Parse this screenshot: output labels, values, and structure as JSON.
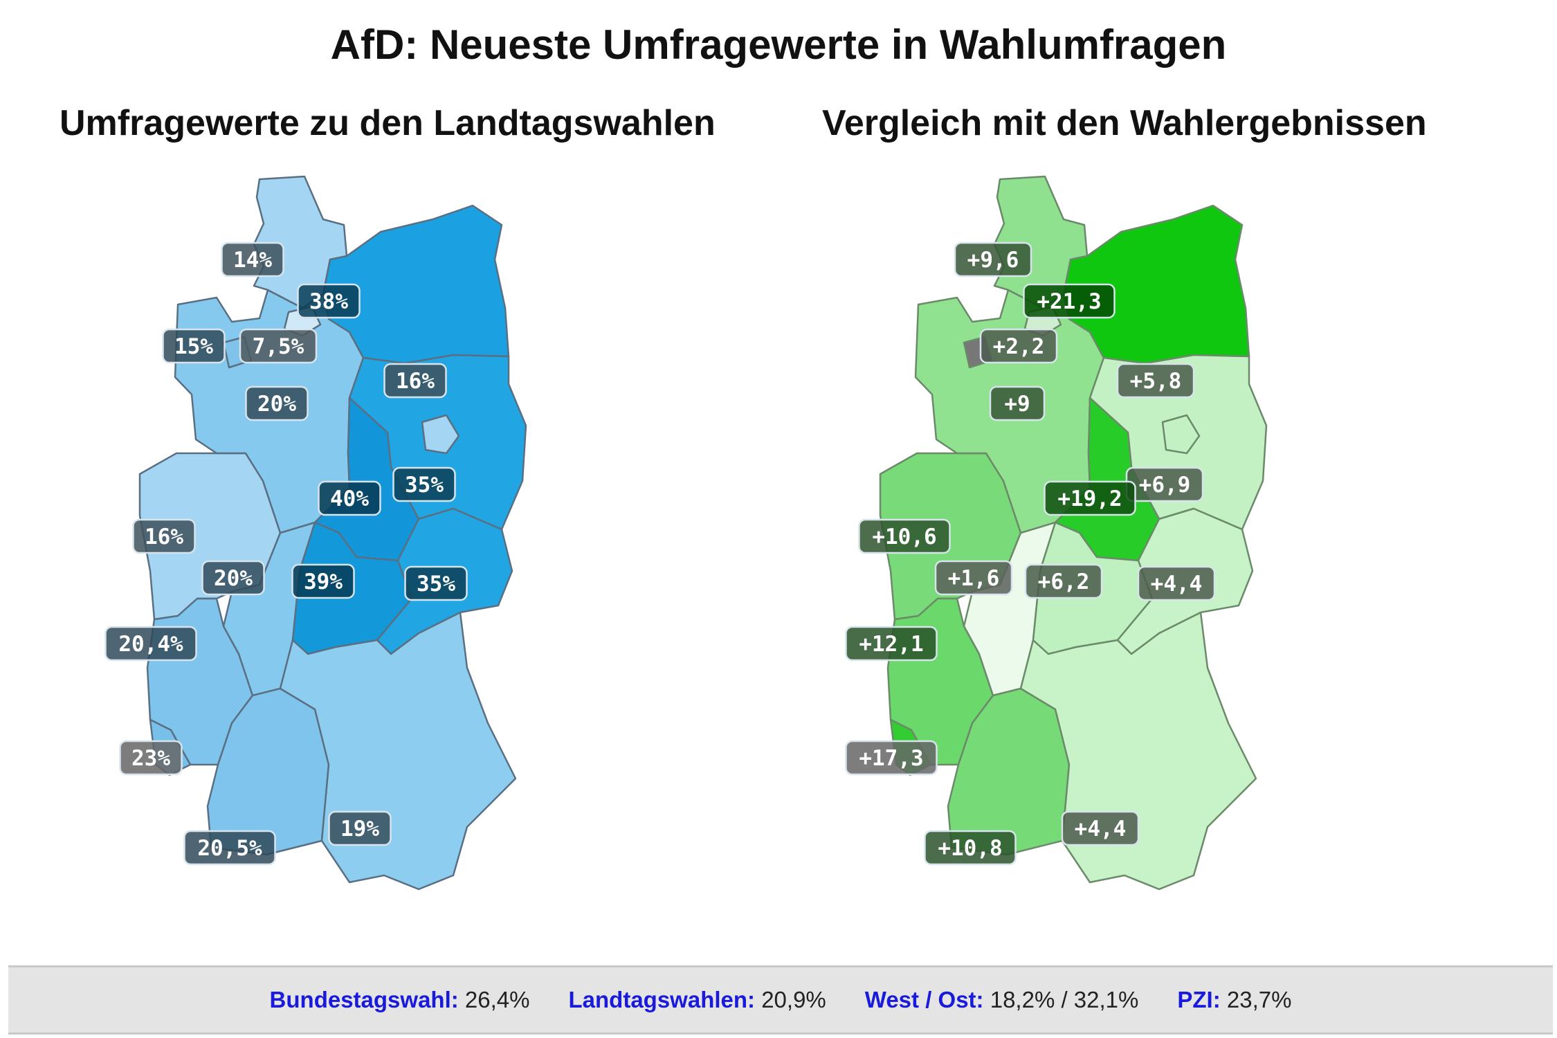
{
  "title": "AfD: Neueste Umfragewerte in Wahlumfragen",
  "left_map": {
    "subtitle": "Umfragewerte zu den Landtagswahlen",
    "regions": {
      "sh": {
        "label": "14%",
        "color": "#a4d6f3"
      },
      "mv": {
        "label": "38%",
        "color": "#1ba0e1"
      },
      "hh": {
        "label": "7,5%",
        "color": "#cfe9f8"
      },
      "hb": {
        "label": "15%",
        "color": "#7fc2ea"
      },
      "ni": {
        "label": "20%",
        "color": "#86c9ee"
      },
      "bb": {
        "label": "35%",
        "color": "#22a5e3"
      },
      "be": {
        "label": "16%",
        "color": "#a4d6f3"
      },
      "st": {
        "label": "40%",
        "color": "#1296d9"
      },
      "nw": {
        "label": "16%",
        "color": "#a4d6f3"
      },
      "he": {
        "label": "20%",
        "color": "#86c9ee"
      },
      "th": {
        "label": "39%",
        "color": "#1398da"
      },
      "sn": {
        "label": "35%",
        "color": "#22a5e3"
      },
      "rp": {
        "label": "20,4%",
        "color": "#7ec4ec"
      },
      "sl": {
        "label": "23%",
        "color": "#78c0ea"
      },
      "bw": {
        "label": "20,5%",
        "color": "#7ec4ec"
      },
      "by": {
        "label": "19%",
        "color": "#8dcdef"
      }
    }
  },
  "right_map": {
    "subtitle": "Vergleich mit den Wahlergebnissen",
    "regions": {
      "sh": {
        "label": "+9,6",
        "color": "#8fe08f"
      },
      "mv": {
        "label": "+21,3",
        "color": "#0ec70e"
      },
      "hh": {
        "label": "+2,2",
        "color": "#cfeecf"
      },
      "hb": {
        "label": "",
        "color": "#777777"
      },
      "ni": {
        "label": "+9",
        "color": "#90e290"
      },
      "bb": {
        "label": "+6,9",
        "color": "#c4f1c4"
      },
      "be": {
        "label": "+5,8",
        "color": "#c4f1c4"
      },
      "st": {
        "label": "+19,2",
        "color": "#28cc28"
      },
      "nw": {
        "label": "+10,6",
        "color": "#79da79"
      },
      "he": {
        "label": "+1,6",
        "color": "#ecfaec"
      },
      "th": {
        "label": "+6,2",
        "color": "#bff0bf"
      },
      "sn": {
        "label": "+4,4",
        "color": "#c8f2c8"
      },
      "rp": {
        "label": "+12,1",
        "color": "#6ad86a"
      },
      "sl": {
        "label": "+17,3",
        "color": "#33cc33"
      },
      "bw": {
        "label": "+10,8",
        "color": "#76da76"
      },
      "by": {
        "label": "+4,4",
        "color": "#c8f2c8"
      }
    }
  },
  "footer": {
    "items": [
      {
        "label": "Bundestagswahl:",
        "value": "26,4%"
      },
      {
        "label": "Landtagswahlen:",
        "value": "20,9%"
      },
      {
        "label": "West / Ost:",
        "value": "18,2% / 32,1%"
      },
      {
        "label": "PZI:",
        "value": "23,7%"
      }
    ]
  }
}
